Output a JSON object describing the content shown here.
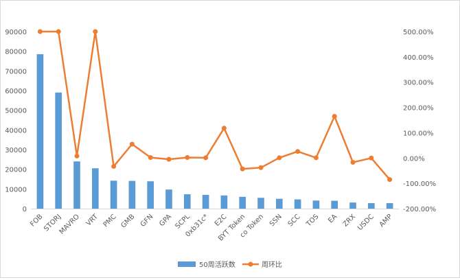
{
  "chart_data": {
    "type": "bar",
    "categories": [
      "FOB",
      "STORJ",
      "MAVRO",
      "VRT",
      "PMC",
      "GMB",
      "GFN",
      "GPA",
      "SCPL",
      "0xb31c*",
      "E2C",
      "BYT Token",
      "co Token",
      "SSN",
      "SCC",
      "TOS",
      "EA",
      "ZRX",
      "USDC",
      "AMP"
    ],
    "series": [
      {
        "name": "50周活跃数",
        "type": "bar",
        "axis": "left",
        "color": "#5b9bd5",
        "values": [
          78500,
          59000,
          24000,
          20500,
          14200,
          14100,
          13900,
          9700,
          7300,
          7000,
          6700,
          6000,
          5500,
          5000,
          4700,
          4100,
          4000,
          3100,
          2800,
          2800
        ]
      },
      {
        "name": "周环比",
        "type": "line",
        "axis": "right",
        "unit": "%",
        "color": "#ed7d31",
        "values": [
          500,
          500,
          8,
          500,
          -33,
          55,
          2,
          -5,
          2,
          1,
          118,
          -43,
          -38,
          1,
          26,
          1,
          165,
          -17,
          0,
          -85
        ]
      }
    ],
    "y_left": {
      "min": 0,
      "max": 90000,
      "step": 10000,
      "ticks": [
        "0",
        "10000",
        "20000",
        "30000",
        "40000",
        "50000",
        "60000",
        "70000",
        "80000",
        "90000"
      ]
    },
    "y_right": {
      "min": -200,
      "max": 500,
      "step": 100,
      "ticks": [
        "-200.00%",
        "-100.00%",
        "0.00%",
        "100.00%",
        "200.00%",
        "300.00%",
        "400.00%",
        "500.00%"
      ]
    },
    "grid": false,
    "legend_position": "bottom",
    "x_label_rotation": "diagonal"
  }
}
